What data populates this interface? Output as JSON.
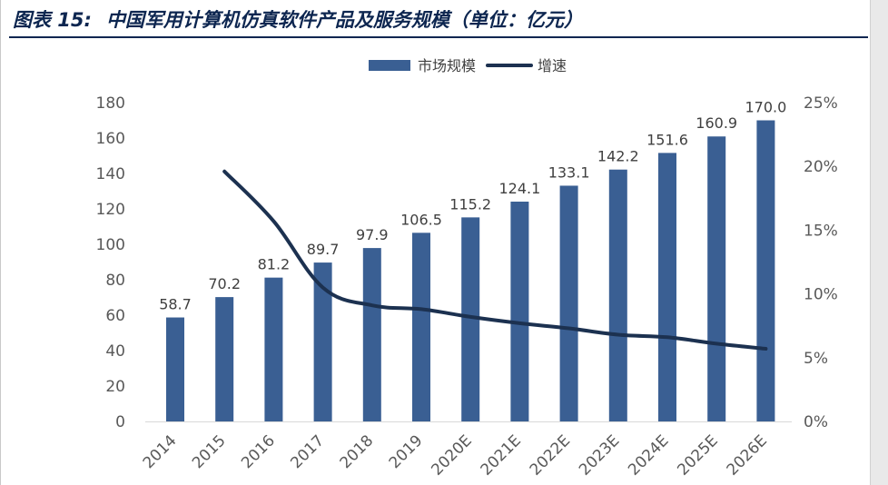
{
  "title": {
    "prefix": "图表 15:",
    "text": "中国军用计算机仿真软件产品及服务规模（单位：亿元）"
  },
  "colors": {
    "bar": "#3a5f93",
    "line": "#1c3150",
    "title": "#0d2650"
  },
  "chart_data": {
    "type": "bar",
    "categories": [
      "2014",
      "2015",
      "2016",
      "2017",
      "2018",
      "2019",
      "2020E",
      "2021E",
      "2022E",
      "2023E",
      "2024E",
      "2025E",
      "2026E"
    ],
    "series": [
      {
        "name": "市场规模",
        "type": "bar",
        "axis": "left",
        "values": [
          58.7,
          70.2,
          81.2,
          89.7,
          97.9,
          106.5,
          115.2,
          124.1,
          133.1,
          142.2,
          151.6,
          160.9,
          170.0
        ],
        "labels": [
          "58.7",
          "70.2",
          "81.2",
          "89.7",
          "97.9",
          "106.5",
          "115.2",
          "124.1",
          "133.1",
          "142.2",
          "151.6",
          "160.9",
          "170.0"
        ]
      },
      {
        "name": "增速",
        "type": "line",
        "axis": "right",
        "values": [
          null,
          19.6,
          15.7,
          10.5,
          9.1,
          8.8,
          8.2,
          7.7,
          7.3,
          6.8,
          6.6,
          6.1,
          5.7
        ]
      }
    ],
    "left_axis": {
      "ylim": [
        0,
        180
      ],
      "ticks": [
        0,
        20,
        40,
        60,
        80,
        100,
        120,
        140,
        160,
        180
      ],
      "tick_labels": [
        "0",
        "20",
        "40",
        "60",
        "80",
        "100",
        "120",
        "140",
        "160",
        "180"
      ]
    },
    "right_axis": {
      "ylim": [
        0,
        25
      ],
      "ticks": [
        0,
        5,
        10,
        15,
        20,
        25
      ],
      "tick_labels": [
        "0%",
        "5%",
        "10%",
        "15%",
        "20%",
        "25%"
      ]
    },
    "legend_position": "top-center",
    "grid": false
  }
}
